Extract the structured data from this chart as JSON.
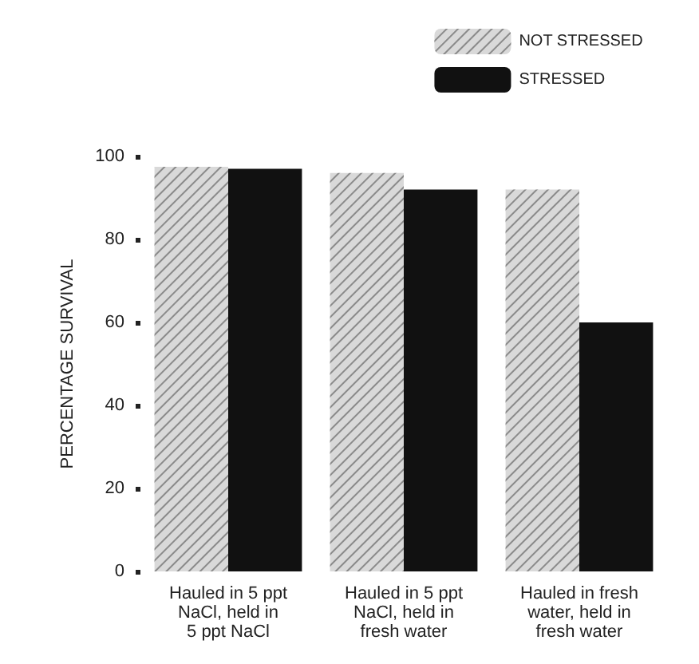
{
  "chart_data": {
    "type": "bar",
    "ylabel": "PERCENTAGE SURVIVAL",
    "categories": [
      "Hauled in 5 ppt\nNaCl, held in\n5 ppt NaCl",
      "Hauled in 5 ppt\nNaCl, held in\nfresh water",
      "Hauled in fresh\nwater, held in\nfresh water"
    ],
    "series": [
      {
        "name": "NOT STRESSED",
        "color": "#d9d9d9",
        "values": [
          97.5,
          96,
          92
        ]
      },
      {
        "name": "STRESSED",
        "color": "#111111",
        "values": [
          97,
          92,
          60
        ]
      }
    ],
    "ylim": [
      0,
      100
    ],
    "yticks": [
      0,
      20,
      40,
      60,
      80,
      100
    ],
    "legend": "top right",
    "grid": false
  }
}
